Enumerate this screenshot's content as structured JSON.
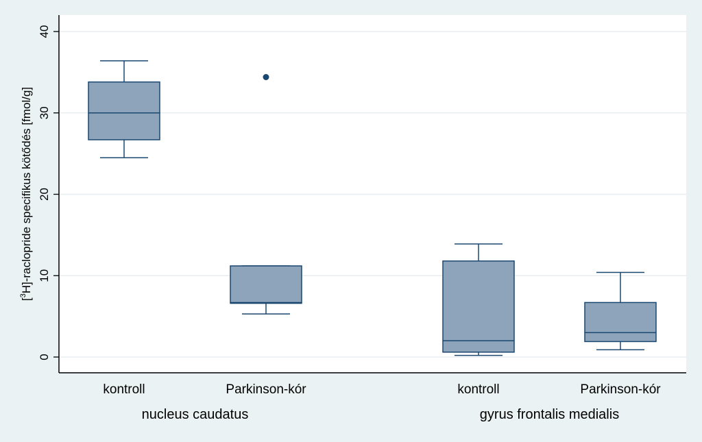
{
  "chart_data": {
    "type": "box",
    "ylabel": {
      "prefix": "[",
      "superscript": "3",
      "suffix": "H]-raclopride specifikus kötődés [fmol/g]"
    },
    "ylim": [
      0,
      40
    ],
    "yticks": [
      0,
      10,
      20,
      30,
      40
    ],
    "grid": true,
    "groups": [
      {
        "label": "nucleus caudatus",
        "boxes": [
          {
            "label": "kontroll",
            "whisker_low": 24.5,
            "q1": 26.7,
            "median": 30.0,
            "q3": 33.8,
            "whisker_high": 36.4,
            "outliers": []
          },
          {
            "label": "Parkinson-kór",
            "whisker_low": 5.3,
            "q1": 6.6,
            "median": 6.7,
            "q3": 11.2,
            "whisker_high": 11.2,
            "outliers": [
              34.4
            ]
          }
        ]
      },
      {
        "label": "gyrus frontalis medialis",
        "boxes": [
          {
            "label": "kontroll",
            "whisker_low": 0.2,
            "q1": 0.6,
            "median": 2.0,
            "q3": 11.8,
            "whisker_high": 13.9,
            "outliers": []
          },
          {
            "label": "Parkinson-kór",
            "whisker_low": 0.9,
            "q1": 1.9,
            "median": 3.0,
            "q3": 6.7,
            "whisker_high": 10.4,
            "outliers": []
          }
        ]
      }
    ],
    "colors": {
      "box_fill": "#8ea4bb",
      "box_stroke": "#1a476f",
      "outlier": "#1a476f",
      "plot_bg": "#ffffff",
      "grid": "#e8eef0",
      "page_bg": "#eaf2f3"
    }
  }
}
